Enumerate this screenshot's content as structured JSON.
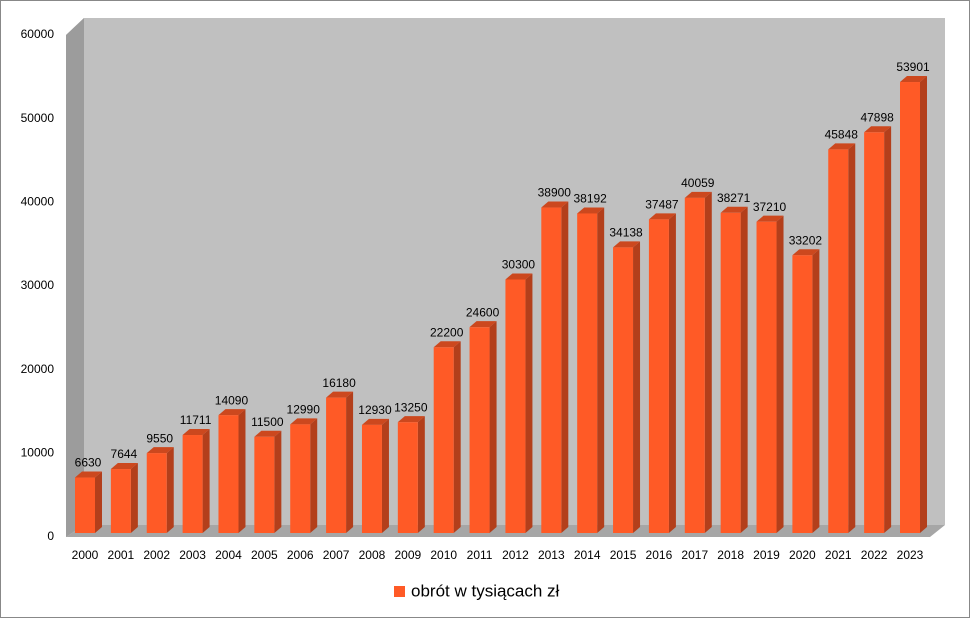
{
  "chart_data": {
    "type": "bar3d",
    "categories": [
      "2000",
      "2001",
      "2002",
      "2003",
      "2004",
      "2005",
      "2006",
      "2007",
      "2008",
      "2009",
      "2010",
      "2011",
      "2012",
      "2013",
      "2014",
      "2015",
      "2016",
      "2017",
      "2018",
      "2019",
      "2020",
      "2021",
      "2022",
      "2023"
    ],
    "series": [
      {
        "name": "obrót w tysiącach zł",
        "color": "#ff5a26",
        "values": [
          6630,
          7644,
          9550,
          11711,
          14090,
          11500,
          12990,
          16180,
          12930,
          13250,
          22200,
          24600,
          30300,
          38900,
          38192,
          34138,
          37487,
          40059,
          38271,
          37210,
          33202,
          45848,
          47898,
          53901
        ]
      }
    ],
    "ylim": [
      0,
      60000
    ],
    "yticks": [
      0,
      10000,
      20000,
      30000,
      40000,
      50000,
      60000
    ],
    "grid": false,
    "legend": "bottom"
  }
}
